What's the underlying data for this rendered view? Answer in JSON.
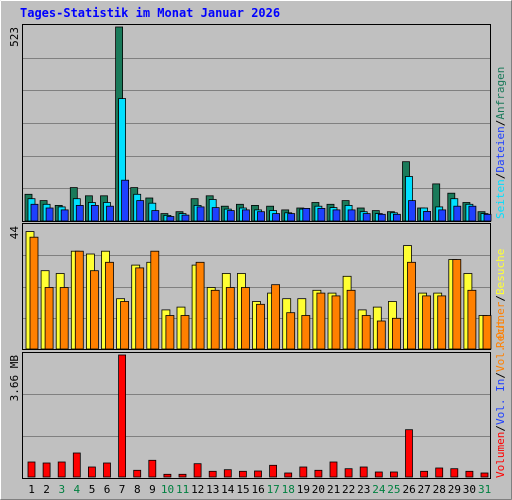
{
  "title": "Tages-Statistik im Monat Januar 2026",
  "colors": {
    "background": "#c0c0c0",
    "title": "#0000ff",
    "hits": "#1a7a5a",
    "files": "#00e0ff",
    "pages": "#1e40ff",
    "visits": "#ffff33",
    "sites": "#ff8000",
    "kbytes": "#ff0000",
    "weekend_day": "#008040",
    "weekday": "#000000"
  },
  "legends": {
    "top": [
      {
        "text": "Seiten",
        "color": "#00e0ff"
      },
      {
        "text": "/",
        "color": "#000000"
      },
      {
        "text": "Dateien",
        "color": "#1e40ff"
      },
      {
        "text": "/",
        "color": "#000000"
      },
      {
        "text": "Anfragen",
        "color": "#1a7a5a"
      }
    ],
    "middle": [
      {
        "text": "Rechner",
        "color": "#ff8000"
      },
      {
        "text": "/",
        "color": "#000000"
      },
      {
        "text": "Besuche",
        "color": "#ffff33"
      }
    ],
    "bottom": [
      {
        "text": "Volumen",
        "color": "#ff0000"
      },
      {
        "text": "/",
        "color": "#000000"
      },
      {
        "text": "Vol. In",
        "color": "#1e40ff"
      },
      {
        "text": "/",
        "color": "#000000"
      },
      {
        "text": "Vol. Out",
        "color": "#ff8000"
      }
    ]
  },
  "chart_data": {
    "type": "bar",
    "days": [
      "1",
      "2",
      "3",
      "4",
      "5",
      "6",
      "7",
      "8",
      "9",
      "10",
      "11",
      "12",
      "13",
      "14",
      "15",
      "16",
      "17",
      "18",
      "19",
      "20",
      "21",
      "22",
      "23",
      "24",
      "25",
      "26",
      "27",
      "28",
      "29",
      "30",
      "31"
    ],
    "weekend_days": [
      "3",
      "4",
      "10",
      "11",
      "17",
      "18",
      "24",
      "25",
      "31"
    ],
    "panels": [
      {
        "id": "requests",
        "max_label": "523",
        "ylim": [
          0,
          523
        ],
        "series": [
          {
            "name": "Anfragen",
            "values": [
              72,
              55,
              42,
              90,
              68,
              68,
              523,
              90,
              62,
              20,
              25,
              60,
              68,
              40,
              45,
              42,
              40,
              30,
              35,
              50,
              45,
              55,
              35,
              28,
              25,
              160,
              35,
              100,
              75,
              50,
              25
            ]
          },
          {
            "name": "Dateien",
            "values": [
              60,
              45,
              38,
              60,
              50,
              50,
              330,
              72,
              48,
              15,
              20,
              42,
              58,
              32,
              35,
              30,
              28,
              22,
              32,
              40,
              36,
              42,
              25,
              20,
              22,
              120,
              35,
              38,
              60,
              45,
              20
            ]
          },
          {
            "name": "Seiten",
            "values": [
              45,
              35,
              30,
              42,
              42,
              40,
              110,
              55,
              28,
              12,
              16,
              38,
              36,
              28,
              30,
              25,
              20,
              20,
              34,
              34,
              30,
              30,
              20,
              18,
              18,
              55,
              26,
              30,
              40,
              40,
              18
            ]
          }
        ]
      },
      {
        "id": "visits",
        "max_label": "44",
        "ylim": [
          0,
          44
        ],
        "series": [
          {
            "name": "Besuche",
            "values": [
              42,
              28,
              27,
              35,
              34,
              35,
              18,
              30,
              31,
              14,
              15,
              30,
              22,
              27,
              27,
              17,
              20,
              18,
              18,
              21,
              20,
              26,
              14,
              15,
              17,
              37,
              20,
              20,
              32,
              27,
              12
            ]
          },
          {
            "name": "Rechner",
            "values": [
              40,
              22,
              22,
              35,
              28,
              31,
              17,
              29,
              35,
              12,
              12,
              31,
              21,
              22,
              22,
              16,
              23,
              13,
              12,
              20,
              19,
              21,
              12,
              10,
              11,
              31,
              19,
              19,
              32,
              21,
              12
            ]
          }
        ]
      },
      {
        "id": "volume",
        "max_label": "3.66 MB",
        "ylim": [
          0,
          3.66
        ],
        "series": [
          {
            "name": "Volumen",
            "values": [
              0.45,
              0.42,
              0.45,
              0.72,
              0.3,
              0.42,
              3.66,
              0.2,
              0.5,
              0.08,
              0.08,
              0.4,
              0.17,
              0.22,
              0.17,
              0.18,
              0.35,
              0.12,
              0.3,
              0.2,
              0.45,
              0.25,
              0.3,
              0.15,
              0.15,
              1.42,
              0.17,
              0.27,
              0.25,
              0.17,
              0.12
            ]
          }
        ]
      }
    ]
  }
}
